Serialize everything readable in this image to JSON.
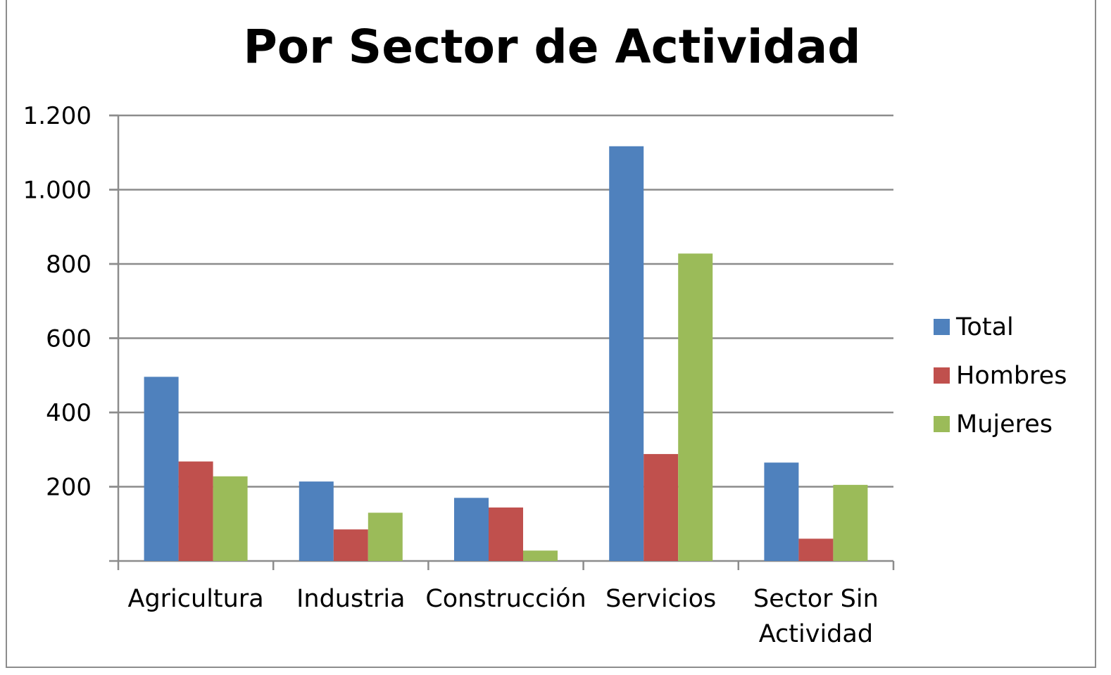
{
  "chart_data": {
    "type": "bar",
    "title": "Por Sector de Actividad",
    "xlabel": "",
    "ylabel": "",
    "categories": [
      "Agricultura",
      "Industria",
      "Construcción",
      "Servicios",
      "Sector Sin Actividad"
    ],
    "category_lines": [
      [
        "Agricultura"
      ],
      [
        "Industria"
      ],
      [
        "Construcción"
      ],
      [
        "Servicios"
      ],
      [
        "Sector Sin",
        "Actividad"
      ]
    ],
    "series": [
      {
        "name": "Total",
        "color": "#4F81BD",
        "values": [
          496,
          214,
          170,
          1117,
          265
        ]
      },
      {
        "name": "Hombres",
        "color": "#C0504D",
        "values": [
          268,
          85,
          144,
          288,
          60
        ]
      },
      {
        "name": "Mujeres",
        "color": "#9BBB59",
        "values": [
          228,
          130,
          28,
          828,
          205
        ]
      }
    ],
    "ylim": [
      0,
      1200
    ],
    "yticks": [
      200,
      400,
      600,
      800,
      1000,
      1200
    ],
    "ytick_labels": [
      "200",
      "400",
      "600",
      "800",
      "1.000",
      "1.200"
    ],
    "grid": true,
    "legend_position": "right"
  }
}
